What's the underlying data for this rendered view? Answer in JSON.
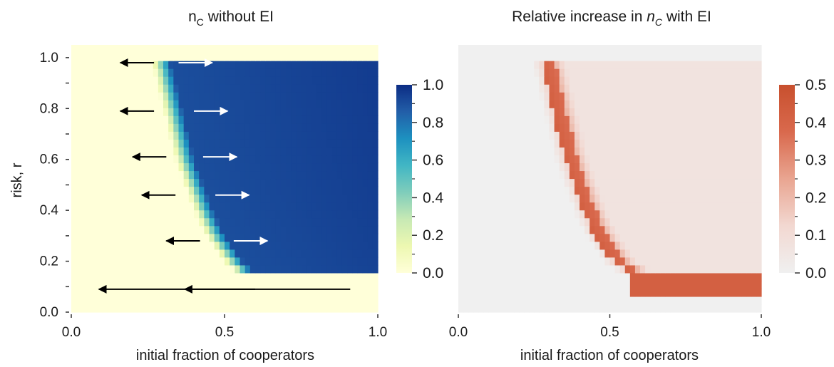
{
  "chart_data": [
    {
      "type": "heatmap",
      "title_main": "n",
      "title_sub": "C",
      "title_rest": " without EI",
      "xlabel": "initial fraction of cooperators",
      "ylabel": "risk, r",
      "xlim": [
        0,
        1
      ],
      "ylim": [
        0,
        1.05
      ],
      "xticks": [
        "0.0",
        "0.5",
        "1.0"
      ],
      "yticks": [
        "0.0",
        "0.2",
        "0.4",
        "0.6",
        "0.8",
        "1.0"
      ],
      "colormap": [
        "#ffffd9",
        "#edf8b1",
        "#c7e9b4",
        "#7fcdbb",
        "#41b6c4",
        "#1d91c0",
        "#225ea8",
        "#0c2c84"
      ],
      "colorbar_ticks": [
        "0.0",
        "0.2",
        "0.4",
        "0.6",
        "0.8",
        "1.0"
      ],
      "colorbar_range": [
        0,
        1
      ],
      "boundary": [
        {
          "r": 1.0,
          "x": 0.29
        },
        {
          "r": 0.9,
          "x": 0.31
        },
        {
          "r": 0.8,
          "x": 0.33
        },
        {
          "r": 0.7,
          "x": 0.35
        },
        {
          "r": 0.6,
          "x": 0.37
        },
        {
          "r": 0.5,
          "x": 0.4
        },
        {
          "r": 0.4,
          "x": 0.43
        },
        {
          "r": 0.3,
          "x": 0.47
        },
        {
          "r": 0.2,
          "x": 0.53
        },
        {
          "r": 0.15,
          "x": 0.57
        }
      ],
      "r_threshold": 0.15,
      "value_defect": 0.0,
      "value_cooperate": 0.9,
      "arrows": [
        {
          "r": 0.98,
          "x_from": 0.27,
          "x_to": 0.16,
          "color": "black"
        },
        {
          "r": 0.98,
          "x_from": 0.35,
          "x_to": 0.46,
          "color": "white"
        },
        {
          "r": 0.79,
          "x_from": 0.27,
          "x_to": 0.16,
          "color": "black"
        },
        {
          "r": 0.79,
          "x_from": 0.4,
          "x_to": 0.51,
          "color": "white"
        },
        {
          "r": 0.61,
          "x_from": 0.31,
          "x_to": 0.2,
          "color": "black"
        },
        {
          "r": 0.61,
          "x_from": 0.43,
          "x_to": 0.54,
          "color": "white"
        },
        {
          "r": 0.46,
          "x_from": 0.34,
          "x_to": 0.23,
          "color": "black"
        },
        {
          "r": 0.46,
          "x_from": 0.47,
          "x_to": 0.58,
          "color": "white"
        },
        {
          "r": 0.28,
          "x_from": 0.42,
          "x_to": 0.31,
          "color": "black"
        },
        {
          "r": 0.28,
          "x_from": 0.53,
          "x_to": 0.64,
          "color": "white"
        },
        {
          "r": 0.09,
          "x_from": 0.91,
          "x_to": 0.09,
          "color": "black"
        },
        {
          "r": 0.09,
          "x_from": 0.6,
          "x_to": 0.37,
          "color": "black"
        },
        {
          "r": 0.09,
          "x_from": 0.4,
          "x_to": 0.64,
          "color": "none"
        }
      ]
    },
    {
      "type": "heatmap",
      "title_pre": "Relative increase in ",
      "title_main": "n",
      "title_sub": "C",
      "title_rest": " with EI",
      "xlabel": "initial fraction of cooperators",
      "xlim": [
        0,
        1
      ],
      "ylim": [
        0,
        1.05
      ],
      "xticks": [
        "0.0",
        "0.5",
        "1.0"
      ],
      "colormap": [
        "#f0f0f0",
        "#f2d8d1",
        "#e9a591",
        "#d9694d",
        "#c8502e"
      ],
      "colorbar_ticks": [
        "0.0",
        "0.1",
        "0.2",
        "0.3",
        "0.4",
        "0.5"
      ],
      "colorbar_range": [
        0,
        0.5
      ],
      "boundary": [
        {
          "r": 1.0,
          "x": 0.27
        },
        {
          "r": 0.9,
          "x": 0.29
        },
        {
          "r": 0.8,
          "x": 0.31
        },
        {
          "r": 0.7,
          "x": 0.33
        },
        {
          "r": 0.6,
          "x": 0.35
        },
        {
          "r": 0.5,
          "x": 0.38
        },
        {
          "r": 0.4,
          "x": 0.41
        },
        {
          "r": 0.3,
          "x": 0.45
        },
        {
          "r": 0.2,
          "x": 0.51
        },
        {
          "r": 0.15,
          "x": 0.57
        }
      ],
      "r_threshold": 0.06,
      "band_value": 0.42,
      "interior_value": 0.07,
      "bottom_band": {
        "r_from": 0.06,
        "r_to": 0.15,
        "x_from": 0.57,
        "value": 0.42
      }
    }
  ]
}
